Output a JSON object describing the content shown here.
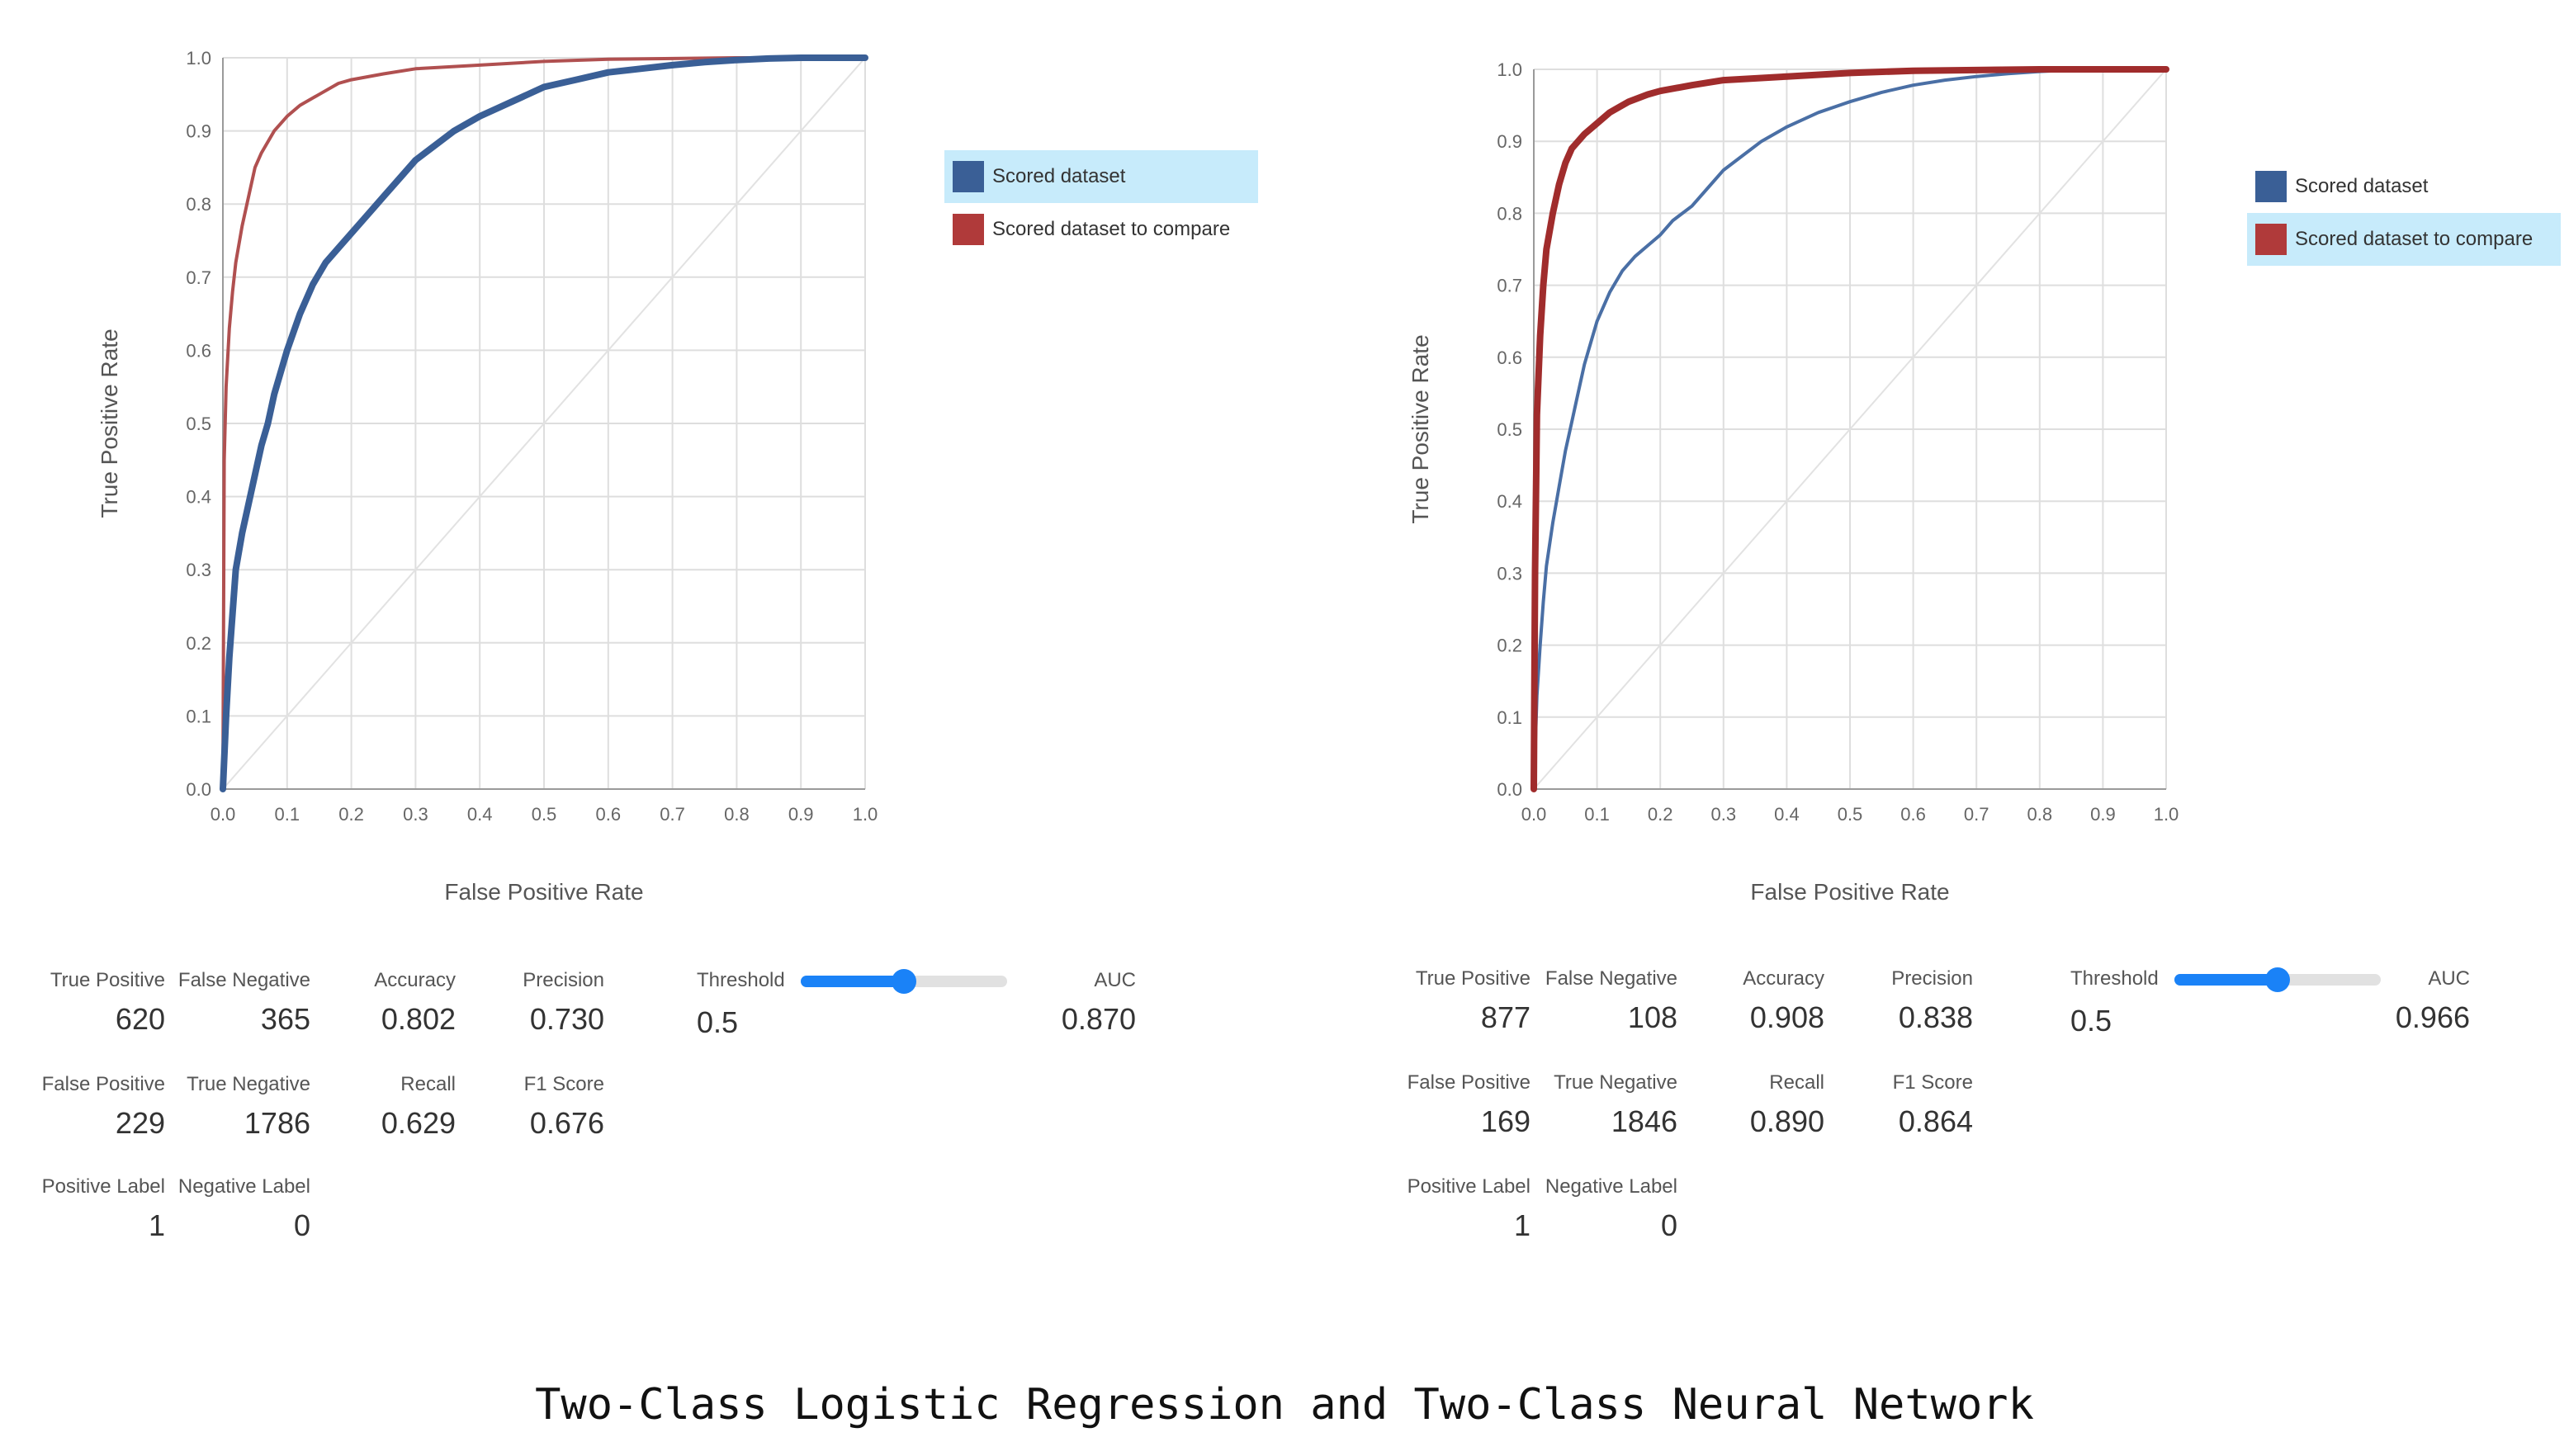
{
  "chart_data": [
    {
      "type": "line",
      "xlabel": "False Positive Rate",
      "ylabel": "True Positive Rate",
      "xlim": [
        0,
        1
      ],
      "ylim": [
        0,
        1
      ],
      "xticks": [
        "0.0",
        "0.1",
        "0.2",
        "0.3",
        "0.4",
        "0.5",
        "0.6",
        "0.7",
        "0.8",
        "0.9",
        "1.0"
      ],
      "yticks": [
        "0.0",
        "0.1",
        "0.2",
        "0.3",
        "0.4",
        "0.5",
        "0.6",
        "0.7",
        "0.8",
        "0.9",
        "1.0"
      ],
      "grid": true,
      "diagonal": true,
      "legend_position": "right",
      "series": [
        {
          "name": "Scored dataset",
          "color": "#3a5f96",
          "emphasis": "bold",
          "x": [
            0,
            0.005,
            0.01,
            0.015,
            0.02,
            0.03,
            0.04,
            0.05,
            0.06,
            0.07,
            0.08,
            0.09,
            0.1,
            0.12,
            0.14,
            0.16,
            0.18,
            0.2,
            0.22,
            0.25,
            0.28,
            0.3,
            0.33,
            0.36,
            0.4,
            0.45,
            0.5,
            0.55,
            0.6,
            0.65,
            0.7,
            0.75,
            0.8,
            0.85,
            0.9,
            1.0
          ],
          "y": [
            0,
            0.1,
            0.18,
            0.24,
            0.3,
            0.35,
            0.39,
            0.43,
            0.47,
            0.5,
            0.54,
            0.57,
            0.6,
            0.65,
            0.69,
            0.72,
            0.74,
            0.76,
            0.78,
            0.81,
            0.84,
            0.86,
            0.88,
            0.9,
            0.92,
            0.94,
            0.96,
            0.97,
            0.98,
            0.985,
            0.99,
            0.994,
            0.997,
            0.999,
            1.0,
            1.0
          ]
        },
        {
          "name": "Scored dataset to compare",
          "color": "#b05050",
          "emphasis": "normal",
          "x": [
            0,
            0.002,
            0.005,
            0.01,
            0.015,
            0.02,
            0.03,
            0.04,
            0.05,
            0.06,
            0.08,
            0.1,
            0.12,
            0.15,
            0.18,
            0.2,
            0.25,
            0.3,
            0.4,
            0.5,
            0.6,
            0.8,
            1.0
          ],
          "y": [
            0,
            0.45,
            0.55,
            0.63,
            0.68,
            0.72,
            0.77,
            0.81,
            0.85,
            0.87,
            0.9,
            0.92,
            0.935,
            0.95,
            0.965,
            0.97,
            0.978,
            0.985,
            0.99,
            0.995,
            0.998,
            1.0,
            1.0
          ]
        }
      ]
    },
    {
      "type": "line",
      "xlabel": "False Positive Rate",
      "ylabel": "True Positive Rate",
      "xlim": [
        0,
        1
      ],
      "ylim": [
        0,
        1
      ],
      "xticks": [
        "0.0",
        "0.1",
        "0.2",
        "0.3",
        "0.4",
        "0.5",
        "0.6",
        "0.7",
        "0.8",
        "0.9",
        "1.0"
      ],
      "yticks": [
        "0.0",
        "0.1",
        "0.2",
        "0.3",
        "0.4",
        "0.5",
        "0.6",
        "0.7",
        "0.8",
        "0.9",
        "1.0"
      ],
      "grid": true,
      "diagonal": true,
      "legend_position": "right",
      "series": [
        {
          "name": "Scored dataset",
          "color": "#4a6fa5",
          "emphasis": "normal",
          "x": [
            0,
            0.005,
            0.01,
            0.015,
            0.02,
            0.03,
            0.04,
            0.05,
            0.06,
            0.07,
            0.08,
            0.09,
            0.1,
            0.12,
            0.14,
            0.16,
            0.18,
            0.2,
            0.22,
            0.25,
            0.28,
            0.3,
            0.33,
            0.36,
            0.4,
            0.45,
            0.5,
            0.55,
            0.6,
            0.65,
            0.7,
            0.75,
            0.8,
            0.85,
            0.9,
            1.0
          ],
          "y": [
            0,
            0.13,
            0.2,
            0.26,
            0.31,
            0.37,
            0.42,
            0.47,
            0.51,
            0.55,
            0.59,
            0.62,
            0.65,
            0.69,
            0.72,
            0.74,
            0.755,
            0.77,
            0.79,
            0.81,
            0.84,
            0.86,
            0.88,
            0.9,
            0.92,
            0.94,
            0.955,
            0.968,
            0.978,
            0.985,
            0.99,
            0.994,
            0.997,
            0.999,
            1.0,
            1.0
          ]
        },
        {
          "name": "Scored dataset to compare",
          "color": "#a02c2c",
          "emphasis": "bold",
          "x": [
            0,
            0.002,
            0.005,
            0.01,
            0.015,
            0.02,
            0.03,
            0.04,
            0.05,
            0.06,
            0.08,
            0.1,
            0.12,
            0.15,
            0.18,
            0.2,
            0.25,
            0.3,
            0.4,
            0.5,
            0.6,
            0.8,
            1.0
          ],
          "y": [
            0,
            0.3,
            0.52,
            0.63,
            0.7,
            0.75,
            0.8,
            0.84,
            0.87,
            0.89,
            0.91,
            0.925,
            0.94,
            0.955,
            0.965,
            0.97,
            0.978,
            0.985,
            0.99,
            0.995,
            0.998,
            1.0,
            1.0
          ]
        }
      ]
    }
  ],
  "panels": [
    {
      "legend": {
        "items": [
          {
            "label": "Scored dataset",
            "color": "#3a5f96"
          },
          {
            "label": "Scored dataset to compare",
            "color": "#b03a3a"
          }
        ],
        "selected_index": 0
      },
      "metrics": {
        "true_positive": {
          "label": "True Positive",
          "value": "620"
        },
        "false_negative": {
          "label": "False Negative",
          "value": "365"
        },
        "accuracy": {
          "label": "Accuracy",
          "value": "0.802"
        },
        "precision": {
          "label": "Precision",
          "value": "0.730"
        },
        "false_positive": {
          "label": "False Positive",
          "value": "229"
        },
        "true_negative": {
          "label": "True Negative",
          "value": "1786"
        },
        "recall": {
          "label": "Recall",
          "value": "0.629"
        },
        "f1_score": {
          "label": "F1 Score",
          "value": "0.676"
        },
        "positive_label": {
          "label": "Positive Label",
          "value": "1"
        },
        "negative_label": {
          "label": "Negative Label",
          "value": "0"
        },
        "auc": {
          "label": "AUC",
          "value": "0.870"
        }
      },
      "threshold": {
        "label": "Threshold",
        "value": "0.5",
        "fraction": 0.5
      }
    },
    {
      "legend": {
        "items": [
          {
            "label": "Scored dataset",
            "color": "#3a5f96"
          },
          {
            "label": "Scored dataset to compare",
            "color": "#b03a3a"
          }
        ],
        "selected_index": 1
      },
      "metrics": {
        "true_positive": {
          "label": "True Positive",
          "value": "877"
        },
        "false_negative": {
          "label": "False Negative",
          "value": "108"
        },
        "accuracy": {
          "label": "Accuracy",
          "value": "0.908"
        },
        "precision": {
          "label": "Precision",
          "value": "0.838"
        },
        "false_positive": {
          "label": "False Positive",
          "value": "169"
        },
        "true_negative": {
          "label": "True Negative",
          "value": "1846"
        },
        "recall": {
          "label": "Recall",
          "value": "0.890"
        },
        "f1_score": {
          "label": "F1 Score",
          "value": "0.864"
        },
        "positive_label": {
          "label": "Positive Label",
          "value": "1"
        },
        "negative_label": {
          "label": "Negative Label",
          "value": "0"
        },
        "auc": {
          "label": "AUC",
          "value": "0.966"
        }
      },
      "threshold": {
        "label": "Threshold",
        "value": "0.5",
        "fraction": 0.5
      }
    }
  ],
  "caption": "Two-Class Logistic Regression and Two-Class Neural Network"
}
